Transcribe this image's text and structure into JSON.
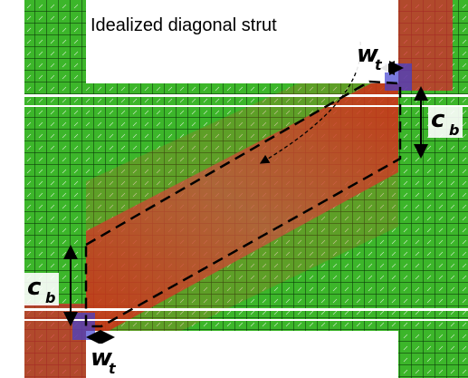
{
  "strut_label": "Idealized diagonal strut",
  "annotations": [
    {
      "symbol": "w",
      "subscript": "t"
    },
    {
      "symbol": "c",
      "subscript": "b"
    },
    {
      "symbol": "c",
      "subscript": "b"
    },
    {
      "symbol": "w",
      "subscript": "t"
    }
  ]
}
